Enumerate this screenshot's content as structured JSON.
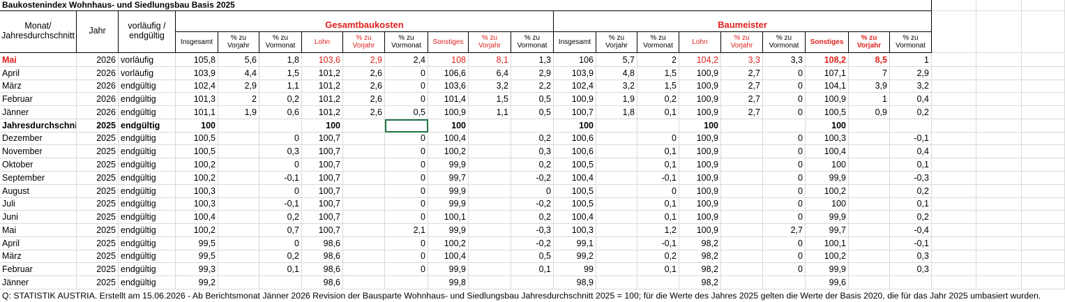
{
  "title": "Baukostenindex Wohnhaus- und Siedlungsbau Basis 2025",
  "table": {
    "headers": [
      "Monat/\nJahresdurchschnitt",
      "Jahr",
      "vorläufig /\nendgültig"
    ],
    "groups": [
      "Gesamtbaukosten",
      "Baumeister"
    ],
    "subheaders": [
      "Insgesamt",
      "% zu\nVorjahr",
      "% zu\nVormonat",
      "Lohn",
      "% zu\nVorjahr",
      "% zu\nVormonat",
      "Sonstiges",
      "% zu\nVorjahr",
      "% zu\nVormonat",
      "Insgesamt",
      "% zu\nVorjahr",
      "% zu\nVormonat",
      "Lohn",
      "% zu\nVorjahr",
      "% zu\nVormonat",
      "Sonstiges",
      "% zu\nVorjahr",
      "% zu\nVormonat"
    ],
    "rows": [
      [
        "Mai",
        "2026",
        "vorläufig",
        "105,8",
        "5,6",
        "1,8",
        "103,6",
        "2,9",
        "2,4",
        "108",
        "8,1",
        "1,3",
        "106",
        "5,7",
        "2",
        "104,2",
        "3,3",
        "3,3",
        "108,2",
        "8,5",
        "1"
      ],
      [
        "April",
        "2026",
        "vorläufig",
        "103,9",
        "4,4",
        "1,5",
        "101,2",
        "2,6",
        "0",
        "106,6",
        "6,4",
        "2,9",
        "103,9",
        "4,8",
        "1,5",
        "100,9",
        "2,7",
        "0",
        "107,1",
        "7",
        "2,9"
      ],
      [
        "März",
        "2026",
        "endgültig",
        "102,4",
        "2,9",
        "1,1",
        "101,2",
        "2,6",
        "0",
        "103,6",
        "3,2",
        "2,2",
        "102,4",
        "3,2",
        "1,5",
        "100,9",
        "2,7",
        "0",
        "104,1",
        "3,9",
        "3,2"
      ],
      [
        "Februar",
        "2026",
        "endgültig",
        "101,3",
        "2",
        "0,2",
        "101,2",
        "2,6",
        "0",
        "101,4",
        "1,5",
        "0,5",
        "100,9",
        "1,9",
        "0,2",
        "100,9",
        "2,7",
        "0",
        "100,9",
        "1",
        "0,4"
      ],
      [
        "Jänner",
        "2026",
        "endgültig",
        "101,1",
        "1,9",
        "0,6",
        "101,2",
        "2,6",
        "0,5",
        "100,9",
        "1,1",
        "0,5",
        "100,7",
        "1,8",
        "0,1",
        "100,9",
        "2,7",
        "0",
        "100,5",
        "0,9",
        "0,2"
      ],
      [
        "Jahresdurchschnitt",
        "2025",
        "endgültig",
        "100",
        null,
        null,
        "100",
        null,
        null,
        "100",
        null,
        null,
        "100",
        null,
        null,
        "100",
        null,
        null,
        "100",
        null,
        null
      ],
      [
        "Dezember",
        "2025",
        "endgültig",
        "100,5",
        null,
        "0",
        "100,7",
        null,
        "0",
        "100,4",
        null,
        "0,2",
        "100,6",
        null,
        "0",
        "100,9",
        null,
        "0",
        "100,3",
        null,
        "-0,1"
      ],
      [
        "November",
        "2025",
        "endgültig",
        "100,5",
        null,
        "0,3",
        "100,7",
        null,
        "0",
        "100,2",
        null,
        "0,3",
        "100,6",
        null,
        "0,1",
        "100,9",
        null,
        "0",
        "100,4",
        null,
        "0,4"
      ],
      [
        "Oktober",
        "2025",
        "endgültig",
        "100,2",
        null,
        "0",
        "100,7",
        null,
        "0",
        "99,9",
        null,
        "0,2",
        "100,5",
        null,
        "0,1",
        "100,9",
        null,
        "0",
        "100",
        null,
        "0,1"
      ],
      [
        "September",
        "2025",
        "endgültig",
        "100,2",
        null,
        "-0,1",
        "100,7",
        null,
        "0",
        "99,7",
        null,
        "-0,2",
        "100,4",
        null,
        "-0,1",
        "100,9",
        null,
        "0",
        "99,9",
        null,
        "-0,3"
      ],
      [
        "August",
        "2025",
        "endgültig",
        "100,3",
        null,
        "0",
        "100,7",
        null,
        "0",
        "99,9",
        null,
        "0",
        "100,5",
        null,
        "0",
        "100,9",
        null,
        "0",
        "100,2",
        null,
        "0,2"
      ],
      [
        "Juli",
        "2025",
        "endgültig",
        "100,3",
        null,
        "-0,1",
        "100,7",
        null,
        "0",
        "99,9",
        null,
        "-0,2",
        "100,5",
        null,
        "0,1",
        "100,9",
        null,
        "0",
        "100",
        null,
        "0,1"
      ],
      [
        "Juni",
        "2025",
        "endgültig",
        "100,4",
        null,
        "0,2",
        "100,7",
        null,
        "0",
        "100,1",
        null,
        "0,2",
        "100,4",
        null,
        "0,1",
        "100,9",
        null,
        "0",
        "99,9",
        null,
        "0,2"
      ],
      [
        "Mai",
        "2025",
        "endgültig",
        "100,2",
        null,
        "0,7",
        "100,7",
        null,
        "2,1",
        "99,9",
        null,
        "-0,3",
        "100,3",
        null,
        "1,2",
        "100,9",
        null,
        "2,7",
        "99,7",
        null,
        "-0,4"
      ],
      [
        "April",
        "2025",
        "endgültig",
        "99,5",
        null,
        "0",
        "98,6",
        null,
        "0",
        "100,2",
        null,
        "-0,2",
        "99,1",
        null,
        "-0,1",
        "98,2",
        null,
        "0",
        "100,1",
        null,
        "-0,1"
      ],
      [
        "März",
        "2025",
        "endgültig",
        "99,5",
        null,
        "0,2",
        "98,6",
        null,
        "0",
        "100,4",
        null,
        "0,5",
        "99,2",
        null,
        "0,2",
        "98,2",
        null,
        "0",
        "100,2",
        null,
        "0,3"
      ],
      [
        "Februar",
        "2025",
        "endgültig",
        "99,3",
        null,
        "0,1",
        "98,6",
        null,
        "0",
        "99,9",
        null,
        "0,1",
        "99",
        null,
        "0,1",
        "98,2",
        null,
        "0",
        "99,9",
        null,
        "0,3"
      ],
      [
        "Jänner",
        "2025",
        "endgültig",
        "99,2",
        null,
        null,
        "98,6",
        null,
        null,
        "99,8",
        null,
        null,
        "98,9",
        null,
        null,
        "98,2",
        null,
        null,
        "99,6",
        null,
        null
      ]
    ]
  },
  "footer": "Q: STATISTIK AUSTRIA. Erstellt am 15.06.2026 - Ab Berichtsmonat Jänner 2026 Revision der Bausparte Wohnhaus- und Siedlungsbau Jahresdurchschnitt 2025 = 100; für die Werte des Jahres 2025 gelten die Werte der Basis 2020, die für das Jahr 2025 umbasiert wurden."
}
